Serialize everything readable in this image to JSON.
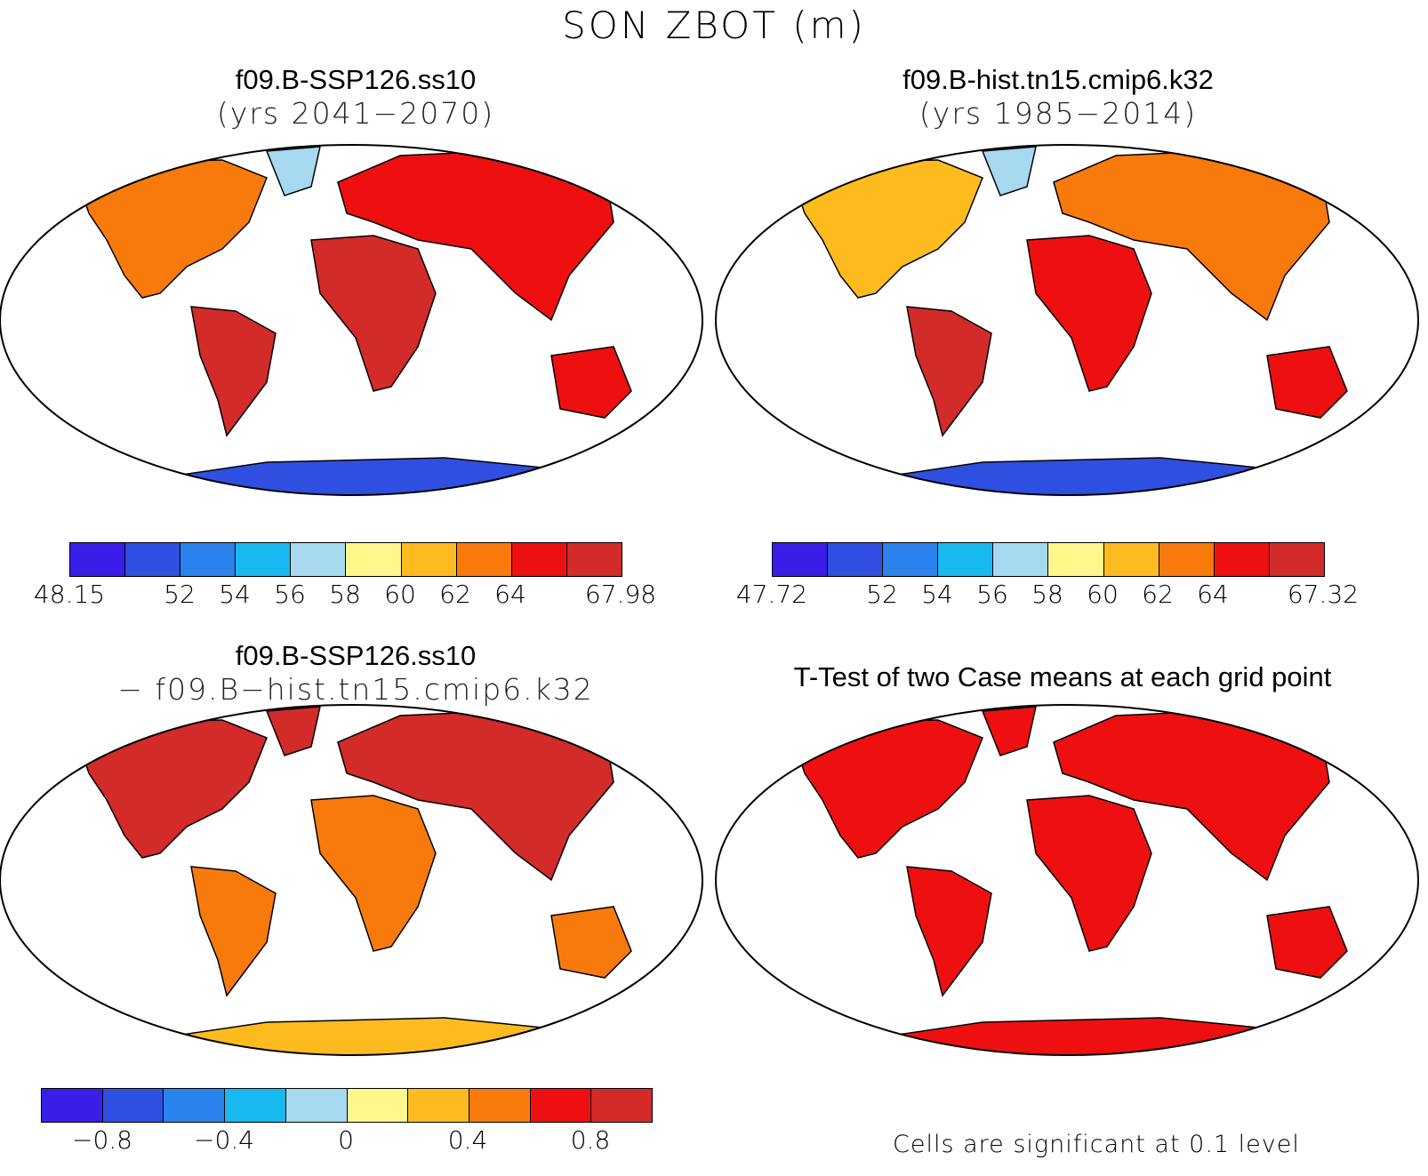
{
  "figure": {
    "title": "SON ZBOT (m)"
  },
  "palette": [
    "#3a1ee8",
    "#2f4fe0",
    "#2a82ec",
    "#18b8f0",
    "#a6d8f0",
    "#fff68c",
    "#fdbb20",
    "#f97a0c",
    "#ee1010",
    "#d32a2a"
  ],
  "panels": [
    {
      "line1": "f09.B-SSP126.ss10",
      "line2": "(yrs 2041−2070)",
      "colorbar": {
        "ticks": [
          "48.15",
          "52",
          "54",
          "56",
          "58",
          "60",
          "62",
          "64",
          "67.98"
        ]
      }
    },
    {
      "line1": "f09.B-hist.tn15.cmip6.k32",
      "line2": "(yrs 1985−2014)",
      "colorbar": {
        "ticks": [
          "47.72",
          "52",
          "54",
          "56",
          "58",
          "60",
          "62",
          "64",
          "67.32"
        ]
      }
    },
    {
      "line1": "f09.B-SSP126.ss10",
      "line2": "− f09.B−hist.tn15.cmip6.k32",
      "colorbar": {
        "ticks": [
          "−0.8",
          "−0.4",
          "0",
          "0.4",
          "0.8"
        ]
      }
    },
    {
      "line1": "T-Test of two Case means at each grid point",
      "note": "Cells are significant at 0.1 level"
    }
  ]
}
